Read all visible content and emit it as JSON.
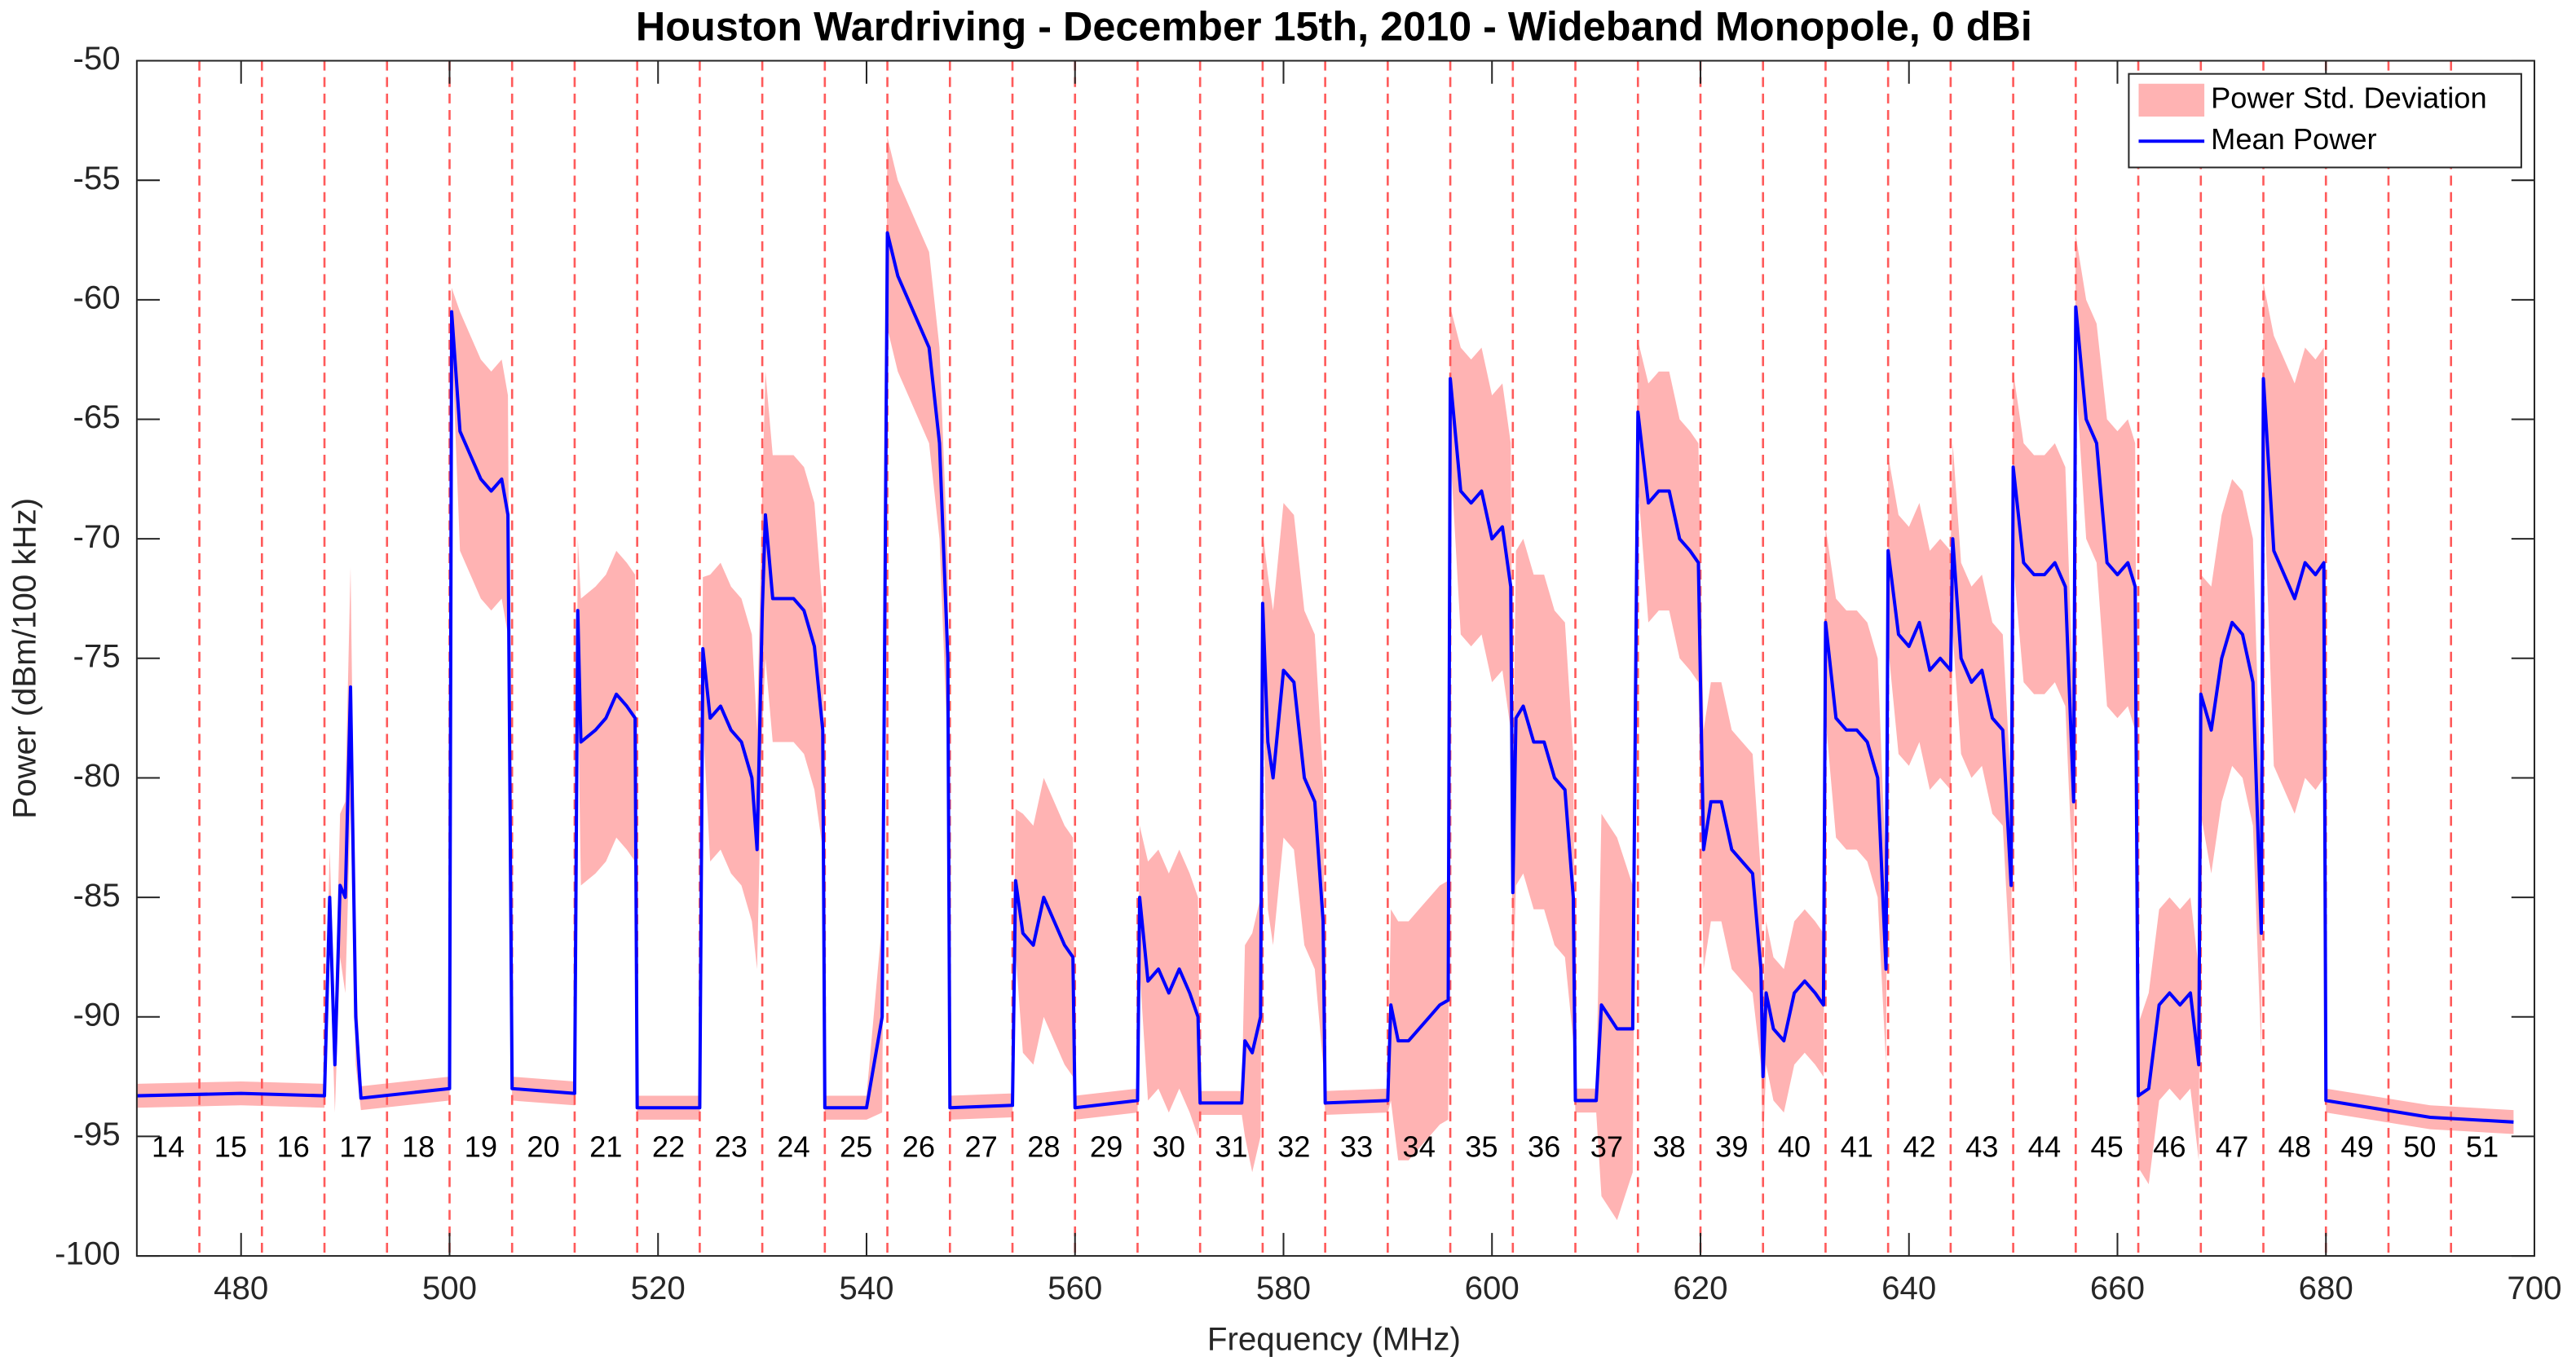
{
  "chart_data": {
    "type": "line",
    "title": "Houston Wardriving - December 15th, 2010 - Wideband Monopole, 0 dBi",
    "x_label": "Frequency (MHz)",
    "y_label": "Power (dBm/100 kHz)",
    "xlim": [
      470,
      700
    ],
    "ylim": [
      -100,
      -50
    ],
    "xticks": [
      480,
      500,
      520,
      540,
      560,
      580,
      600,
      620,
      640,
      660,
      680,
      700
    ],
    "yticks": [
      -100,
      -95,
      -90,
      -85,
      -80,
      -75,
      -70,
      -65,
      -60,
      -55,
      -50
    ],
    "legend": "upper right",
    "channel_edges": [
      476,
      482,
      488,
      494,
      500,
      506,
      512,
      518,
      524,
      530,
      536,
      542,
      548,
      554,
      560,
      566,
      572,
      578,
      584,
      590,
      596,
      602,
      608,
      614,
      620,
      626,
      632,
      638,
      644,
      650,
      656,
      662,
      668,
      674,
      680,
      686,
      692
    ],
    "channel_edge_color": "#ff5a5a",
    "channel_labels": [
      {
        "value": 473,
        "label": "14"
      },
      {
        "value": 479,
        "label": "15"
      },
      {
        "value": 485,
        "label": "16"
      },
      {
        "value": 491,
        "label": "17"
      },
      {
        "value": 497,
        "label": "18"
      },
      {
        "value": 503,
        "label": "19"
      },
      {
        "value": 509,
        "label": "20"
      },
      {
        "value": 515,
        "label": "21"
      },
      {
        "value": 521,
        "label": "22"
      },
      {
        "value": 527,
        "label": "23"
      },
      {
        "value": 533,
        "label": "24"
      },
      {
        "value": 539,
        "label": "25"
      },
      {
        "value": 545,
        "label": "26"
      },
      {
        "value": 551,
        "label": "27"
      },
      {
        "value": 557,
        "label": "28"
      },
      {
        "value": 563,
        "label": "29"
      },
      {
        "value": 569,
        "label": "30"
      },
      {
        "value": 575,
        "label": "31"
      },
      {
        "value": 581,
        "label": "32"
      },
      {
        "value": 587,
        "label": "33"
      },
      {
        "value": 593,
        "label": "34"
      },
      {
        "value": 599,
        "label": "35"
      },
      {
        "value": 605,
        "label": "36"
      },
      {
        "value": 611,
        "label": "37"
      },
      {
        "value": 617,
        "label": "38"
      },
      {
        "value": 623,
        "label": "39"
      },
      {
        "value": 629,
        "label": "40"
      },
      {
        "value": 635,
        "label": "41"
      },
      {
        "value": 641,
        "label": "42"
      },
      {
        "value": 647,
        "label": "43"
      },
      {
        "value": 653,
        "label": "44"
      },
      {
        "value": 659,
        "label": "45"
      },
      {
        "value": 665,
        "label": "46"
      },
      {
        "value": 671,
        "label": "47"
      },
      {
        "value": 677,
        "label": "48"
      },
      {
        "value": 683,
        "label": "49"
      },
      {
        "value": 689,
        "label": "50"
      },
      {
        "value": 695,
        "label": "51"
      }
    ],
    "x": [
      470,
      480,
      488,
      488.5,
      489,
      489.5,
      490,
      490.5,
      491,
      491.5,
      500,
      500.2,
      501,
      502,
      503,
      504,
      505,
      505.6,
      506,
      512,
      512.3,
      512.6,
      514,
      515,
      516,
      517,
      517.8,
      518,
      524,
      524.3,
      525,
      526,
      527,
      528,
      529,
      529.5,
      530,
      530.3,
      531,
      532,
      533,
      534,
      535,
      535.8,
      536,
      540,
      541.5,
      542,
      543,
      544,
      545,
      546,
      547,
      547.8,
      548,
      554,
      554.3,
      555,
      556,
      557,
      558,
      559,
      559.8,
      560,
      566,
      566.2,
      567,
      568,
      569,
      570,
      571,
      571.8,
      572,
      576,
      576.3,
      577,
      577.8,
      578,
      578.5,
      579,
      580,
      581,
      582,
      583,
      583.8,
      584,
      590,
      590.3,
      591,
      592,
      593,
      594,
      595,
      595.8,
      596,
      597,
      598,
      599,
      600,
      601,
      601.8,
      602,
      602.3,
      603,
      604,
      605,
      606,
      607,
      607.8,
      608,
      610,
      610.5,
      612,
      613.5,
      614,
      615,
      616,
      617,
      618,
      619,
      619.8,
      620,
      620.3,
      621,
      622,
      623,
      624,
      625,
      625.8,
      626,
      626.3,
      627,
      628,
      629,
      630,
      631,
      631.8,
      632,
      633,
      634,
      635,
      636,
      637,
      637.8,
      638,
      639,
      640,
      641,
      642,
      643,
      644,
      644.2,
      645,
      646,
      647,
      648,
      649,
      649.8,
      650,
      651,
      652,
      653,
      654,
      655,
      655.8,
      656,
      657,
      658,
      659,
      660,
      661,
      661.7,
      662,
      663,
      664,
      665,
      666,
      667,
      667.8,
      668,
      669,
      670,
      671,
      672,
      673,
      673.8,
      674,
      675,
      676,
      677,
      678,
      679,
      679.8,
      680,
      690,
      698
    ],
    "series": [
      {
        "name": "Power Std. Deviation",
        "color": "#ffb3b3",
        "role": "band",
        "values": [
          0.5,
          0.5,
          0.5,
          2,
          2,
          3,
          4,
          5,
          2,
          0.5,
          0.5,
          1,
          5,
          5,
          5,
          5,
          5,
          5,
          0.5,
          0.5,
          3,
          6,
          6,
          6,
          6,
          6,
          6,
          0.5,
          0.5,
          3,
          6,
          6,
          6,
          6,
          6,
          5,
          5,
          6,
          6,
          6,
          6,
          6,
          6,
          5,
          0.5,
          0.5,
          4,
          4,
          4,
          4,
          4,
          4,
          4,
          4,
          0.5,
          0.5,
          3,
          5,
          5,
          5,
          5,
          5,
          5,
          0.5,
          0.5,
          3,
          5,
          5,
          5,
          5,
          5,
          5,
          0.5,
          0.5,
          4,
          5,
          5,
          3,
          7,
          7,
          7,
          7,
          7,
          7,
          6,
          0.5,
          0.5,
          4,
          5,
          5,
          5,
          5,
          5,
          5,
          3,
          6,
          6,
          6,
          6,
          6,
          6,
          4,
          7,
          7,
          7,
          7,
          7,
          7,
          6,
          0.5,
          0.5,
          8,
          8,
          6,
          3,
          5,
          5,
          5,
          5,
          5,
          5,
          5,
          5,
          5,
          5,
          5,
          5,
          5,
          4,
          3,
          3,
          3,
          3,
          3,
          3,
          3,
          3,
          4,
          5,
          5,
          5,
          5,
          5,
          4,
          4,
          5,
          5,
          5,
          5,
          5,
          5,
          4,
          4,
          4,
          4,
          4,
          4,
          4,
          4,
          5,
          5,
          5,
          5,
          5,
          4,
          3,
          5,
          5,
          6,
          6,
          6,
          6,
          3,
          4,
          4,
          4,
          4,
          4,
          4,
          5,
          6,
          6,
          6,
          6,
          6,
          5,
          4,
          9,
          9,
          9,
          9,
          9,
          9,
          0.5,
          0.5,
          0.5
        ]
      },
      {
        "name": "Mean Power",
        "color": "#0000ff",
        "role": "line",
        "values": [
          -93.3,
          -93.2,
          -93.3,
          -85,
          -92,
          -84.5,
          -85,
          -76.2,
          -90,
          -93.4,
          -93,
          -60.5,
          -65.5,
          -66.5,
          -67.5,
          -68,
          -67.5,
          -69,
          -93,
          -93.2,
          -73,
          -78.5,
          -78,
          -77.5,
          -76.5,
          -77,
          -77.5,
          -93.8,
          -93.8,
          -74.6,
          -77.5,
          -77,
          -78,
          -78.5,
          -80,
          -83,
          -73,
          -69,
          -72.5,
          -72.5,
          -72.5,
          -73,
          -74.5,
          -78,
          -93.8,
          -93.8,
          -90,
          -57.2,
          -59,
          -60,
          -61,
          -62,
          -66,
          -75,
          -93.8,
          -93.7,
          -84.3,
          -86.5,
          -87,
          -85,
          -86,
          -87,
          -87.5,
          -93.8,
          -93.5,
          -85,
          -88.5,
          -88,
          -89,
          -88,
          -89,
          -90,
          -93.6,
          -93.6,
          -91,
          -91.5,
          -90,
          -72.7,
          -78.5,
          -80,
          -75.5,
          -76,
          -80,
          -81,
          -86,
          -93.6,
          -93.5,
          -89.5,
          -91,
          -91,
          -90.5,
          -90,
          -89.5,
          -89.3,
          -63.3,
          -68,
          -68.5,
          -68,
          -70,
          -69.5,
          -72,
          -84.8,
          -77.5,
          -77,
          -78.5,
          -78.5,
          -80,
          -80.5,
          -85,
          -93.5,
          -93.5,
          -89.5,
          -90.5,
          -90.5,
          -64.7,
          -68.5,
          -68,
          -68,
          -70,
          -70.5,
          -71,
          -76,
          -83,
          -81,
          -81,
          -83,
          -83.5,
          -84,
          -88,
          -92.5,
          -89,
          -90.5,
          -91,
          -89,
          -88.5,
          -89,
          -89.5,
          -73.5,
          -77.5,
          -78,
          -78,
          -78.5,
          -80,
          -88,
          -70.5,
          -74,
          -74.5,
          -73.5,
          -75.5,
          -75,
          -75.5,
          -70,
          -75,
          -76,
          -75.5,
          -77.5,
          -78,
          -84.5,
          -67,
          -71,
          -71.5,
          -71.5,
          -71,
          -72,
          -81,
          -60.3,
          -65,
          -66,
          -71,
          -71.5,
          -71,
          -72,
          -93.3,
          -93,
          -89.5,
          -89,
          -89.5,
          -89,
          -92,
          -76.5,
          -78,
          -75,
          -73.5,
          -74,
          -76,
          -86.5,
          -63.3,
          -70.5,
          -71.5,
          -72.5,
          -71,
          -71.5,
          -71,
          -93.5,
          -94.2,
          -94.4
        ]
      }
    ]
  }
}
